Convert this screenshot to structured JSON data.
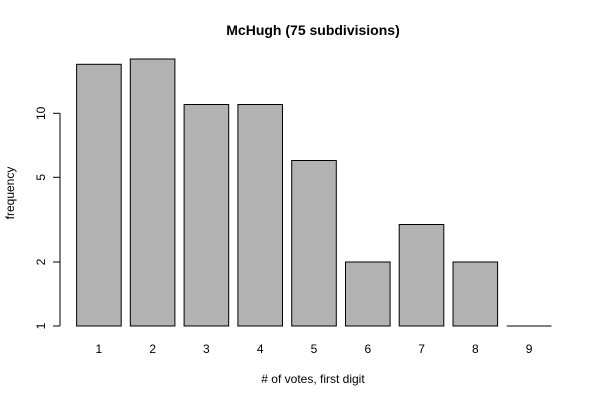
{
  "chart_data": {
    "type": "bar",
    "title": "McHugh (75 subdivisions)",
    "xlabel": "# of votes, first digit",
    "ylabel": "frequency",
    "categories": [
      "1",
      "2",
      "3",
      "4",
      "5",
      "6",
      "7",
      "8",
      "9"
    ],
    "values": [
      17,
      18,
      11,
      11,
      6,
      2,
      3,
      2,
      1
    ],
    "y_scale": "log",
    "y_ticks": [
      1,
      2,
      5,
      10
    ],
    "y_tick_labels": [
      "1",
      "2",
      "5",
      "10"
    ],
    "ylim": [
      1,
      18
    ],
    "grid": false,
    "bar_color": "#b2b2b2",
    "border_color": "#000000"
  }
}
